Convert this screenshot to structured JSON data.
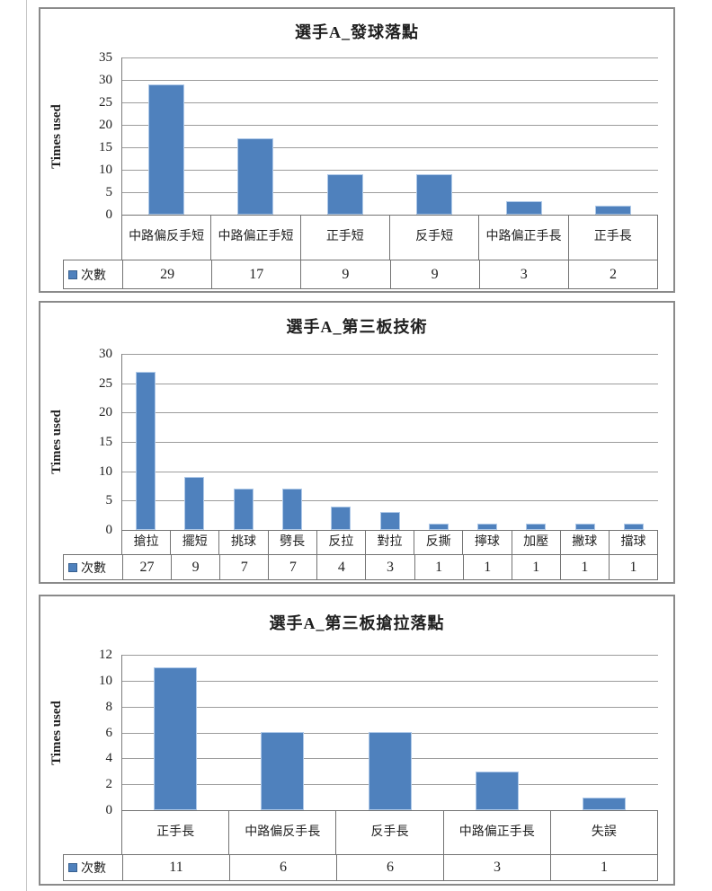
{
  "colors": {
    "bar_fill": "#4F81BD",
    "bar_border": "#AFC9E8",
    "legend_marker": "#4F81BD"
  },
  "chart_data": [
    {
      "type": "bar",
      "title": "選手A_發球落點",
      "ylabel": "Times used",
      "legend": "次數",
      "categories": [
        "中路偏反手短",
        "中路偏正手短",
        "正手短",
        "反手短",
        "中路偏正手長",
        "正手長"
      ],
      "values": [
        29,
        17,
        9,
        9,
        3,
        2
      ],
      "ylim": [
        0,
        35
      ],
      "ystep": 5,
      "grid": true,
      "legend_position": "data-table-left"
    },
    {
      "type": "bar",
      "title": "選手A_第三板技術",
      "ylabel": "Times used",
      "legend": "次數",
      "categories": [
        "搶拉",
        "擺短",
        "挑球",
        "劈長",
        "反拉",
        "對拉",
        "反撕",
        "擰球",
        "加壓",
        "撇球",
        "擋球"
      ],
      "values": [
        27,
        9,
        7,
        7,
        4,
        3,
        1,
        1,
        1,
        1,
        1
      ],
      "ylim": [
        0,
        30
      ],
      "ystep": 5,
      "grid": true,
      "legend_position": "data-table-left"
    },
    {
      "type": "bar",
      "title": "選手A_第三板搶拉落點",
      "ylabel": "Times used",
      "legend": "次數",
      "categories": [
        "正手長",
        "中路偏反手長",
        "反手長",
        "中路偏正手長",
        "失誤"
      ],
      "values": [
        11,
        6,
        6,
        3,
        1
      ],
      "ylim": [
        0,
        12
      ],
      "ystep": 2,
      "grid": true,
      "legend_position": "data-table-left"
    }
  ]
}
